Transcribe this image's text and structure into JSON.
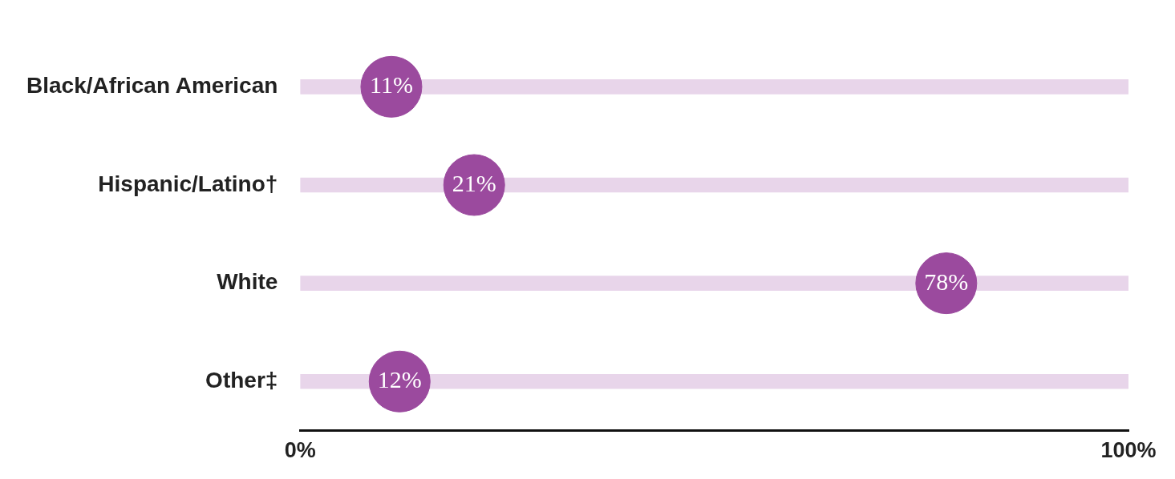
{
  "chart_data": {
    "type": "scatter",
    "orientation": "horizontal",
    "categories": [
      "Black/African American",
      "Hispanic/Latino†",
      "White",
      "Other‡"
    ],
    "series": [
      {
        "type": "bar",
        "color": "#e8d5ea",
        "values": [
          100,
          100,
          100,
          100
        ]
      },
      {
        "color": "#9b4a9e",
        "values": [
          11,
          21,
          78,
          12
        ],
        "value_labels": [
          "11%",
          "21%",
          "78%",
          "12%"
        ]
      }
    ],
    "xlim": [
      0,
      100
    ],
    "xticks": [
      {
        "value": 0,
        "label": "0%"
      },
      {
        "value": 100,
        "label": "100%"
      }
    ],
    "grid": false,
    "legend": false,
    "marker": "circle"
  }
}
